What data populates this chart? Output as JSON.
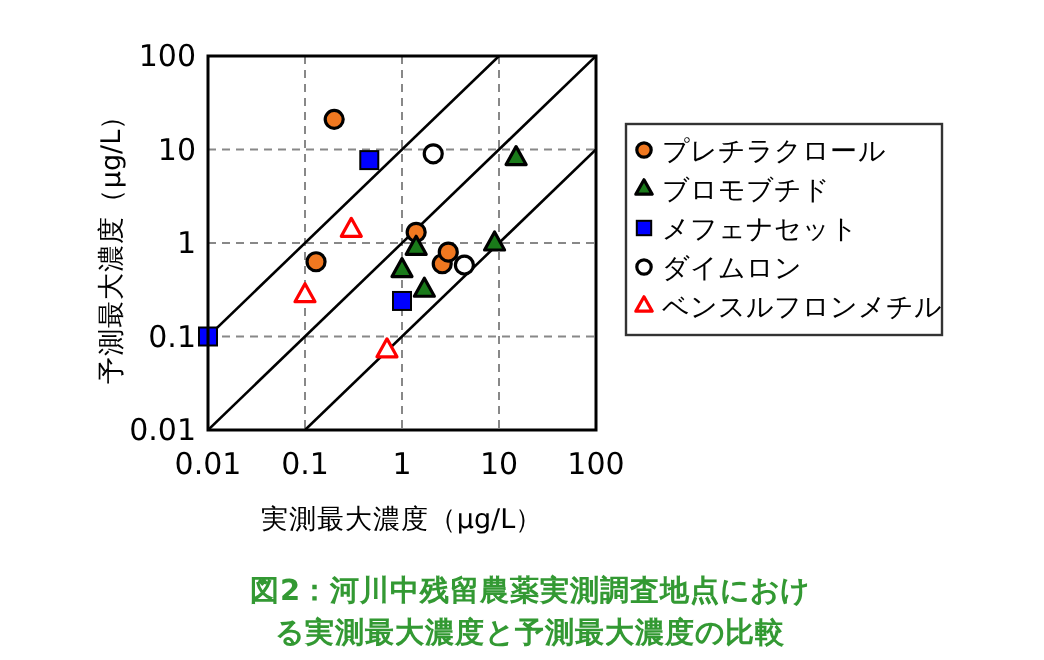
{
  "chart_data": {
    "type": "scatter",
    "title": "図2：河川中残留農薬実測調査地点における実測最大濃度と予測最大濃度の比較",
    "xlabel": "実測最大濃度（μg/L）",
    "ylabel": "予測最大濃度（μg/L）",
    "log": "xy",
    "xlim": [
      0.01,
      100
    ],
    "ylim": [
      0.01,
      100
    ],
    "xticks": [
      0.01,
      0.1,
      1,
      10,
      100
    ],
    "yticks": [
      0.01,
      0.1,
      1,
      10,
      100
    ],
    "grid": true,
    "legend": "right",
    "series": [
      {
        "name": "プレチラクロール",
        "color": "#f07820",
        "marker": "circle",
        "x": [
          0.2,
          0.13,
          1.4,
          2.6,
          3.0
        ],
        "values": [
          21,
          0.63,
          1.3,
          0.6,
          0.8
        ]
      },
      {
        "name": "ブロモブチド",
        "color": "#1a7a1a",
        "marker": "triangle",
        "x": [
          15,
          1.4,
          1.0,
          1.7,
          9
        ],
        "values": [
          8.2,
          0.9,
          0.52,
          0.32,
          1.0
        ]
      },
      {
        "name": "メフェナセット",
        "color": "#0000ff",
        "marker": "square",
        "x": [
          0.46,
          1.0,
          0.01
        ],
        "values": [
          7.7,
          0.24,
          0.1
        ]
      },
      {
        "name": "ダイムロン",
        "color": "#000000",
        "marker": "circle-open",
        "x": [
          2.1,
          4.4
        ],
        "values": [
          9,
          0.58
        ]
      },
      {
        "name": "ベンスルフロンメチル",
        "color": "#ff0000",
        "marker": "triangle-open",
        "x": [
          0.3,
          0.1,
          0.7
        ],
        "values": [
          1.4,
          0.28,
          0.072
        ]
      },
      {
        "type": "line",
        "color": "#000000",
        "marker": "none",
        "x": [
          0.01,
          10
        ],
        "values": [
          0.1,
          100
        ]
      },
      {
        "type": "line",
        "color": "#000000",
        "marker": "none",
        "x": [
          0.01,
          100
        ],
        "values": [
          0.01,
          100
        ]
      },
      {
        "type": "line",
        "color": "#000000",
        "marker": "none",
        "x": [
          0.1,
          100
        ],
        "values": [
          0.01,
          10
        ]
      }
    ]
  }
}
